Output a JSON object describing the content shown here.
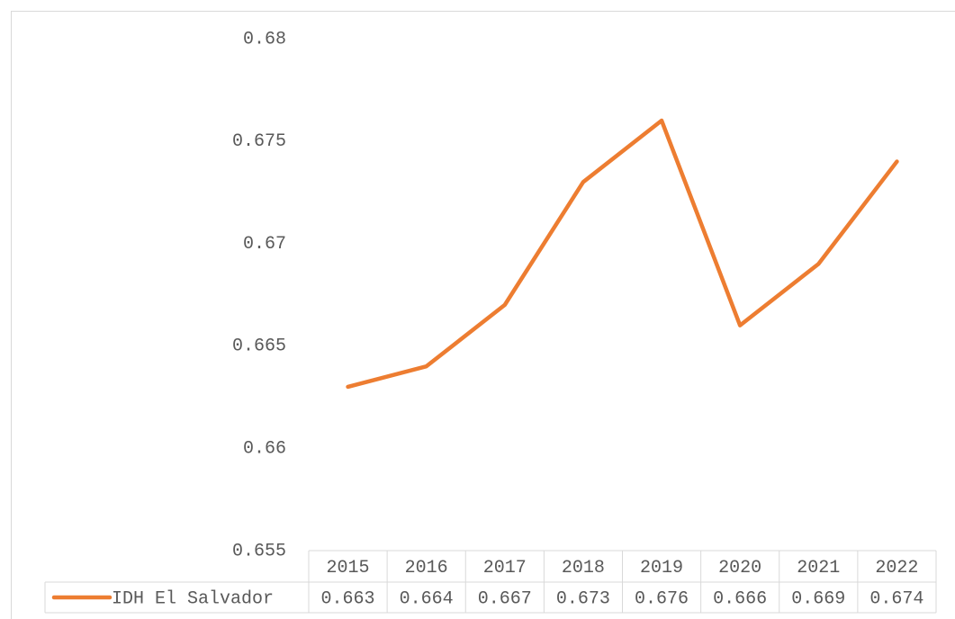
{
  "chart_data": {
    "type": "line",
    "categories": [
      "2015",
      "2016",
      "2017",
      "2018",
      "2019",
      "2020",
      "2021",
      "2022"
    ],
    "series": [
      {
        "name": "IDH El Salvador",
        "color": "#ed7d31",
        "values": [
          0.663,
          0.664,
          0.667,
          0.673,
          0.676,
          0.666,
          0.669,
          0.674
        ]
      }
    ],
    "ylim": [
      0.655,
      0.68
    ],
    "yticks": [
      0.655,
      0.66,
      0.665,
      0.67,
      0.675,
      0.68
    ],
    "grid": false
  }
}
